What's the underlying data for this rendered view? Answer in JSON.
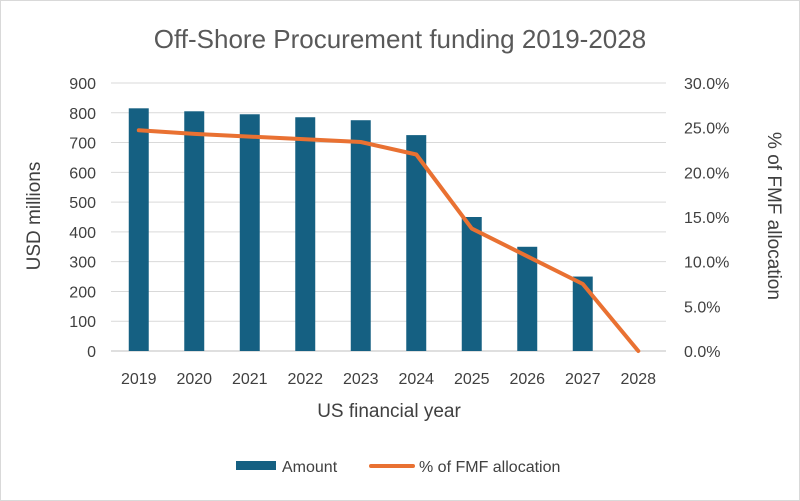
{
  "chart_data": {
    "type": "bar",
    "title": "Off-Shore Procurement funding 2019-2028",
    "xlabel": "US financial year",
    "ylabel": "USD millions",
    "y2label": "% of FMF allocation",
    "categories": [
      "2019",
      "2020",
      "2021",
      "2022",
      "2023",
      "2024",
      "2025",
      "2026",
      "2027",
      "2028"
    ],
    "series": [
      {
        "name": "Amount",
        "type": "bar",
        "axis": "left",
        "color": "#156082",
        "values": [
          815,
          805,
          795,
          785,
          775,
          725,
          450,
          350,
          250,
          0
        ]
      },
      {
        "name": "% of FMF allocation",
        "type": "line",
        "axis": "right",
        "color": "#E97132",
        "values": [
          0.247,
          0.243,
          0.24,
          0.237,
          0.234,
          0.22,
          0.137,
          0.106,
          0.075,
          0.0
        ]
      }
    ],
    "ylim": [
      0,
      900
    ],
    "yticks": [
      "0",
      "100",
      "200",
      "300",
      "400",
      "500",
      "600",
      "700",
      "800",
      "900"
    ],
    "y2lim": [
      0,
      0.3
    ],
    "y2ticks": [
      "0.0%",
      "5.0%",
      "10.0%",
      "15.0%",
      "20.0%",
      "25.0%",
      "30.0%"
    ],
    "grid": true,
    "legend_position": "bottom"
  }
}
